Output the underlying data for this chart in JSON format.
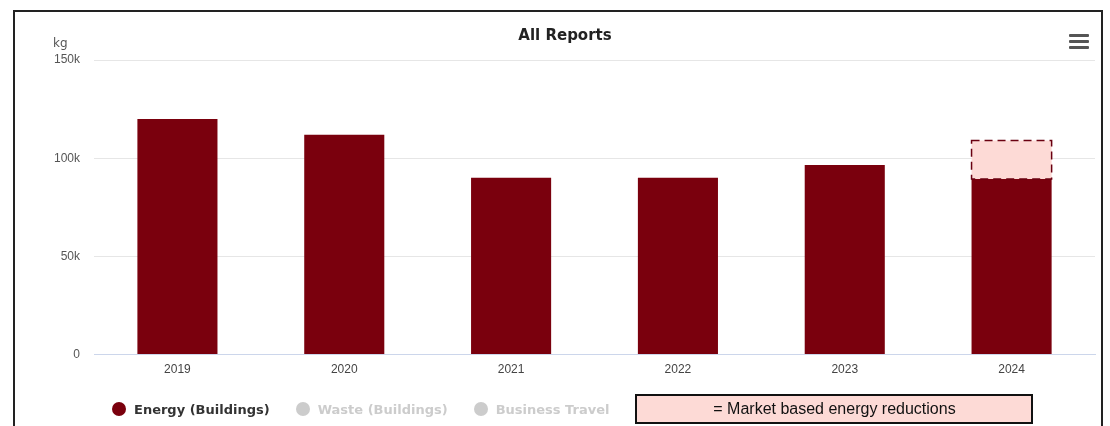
{
  "chart_data": {
    "type": "bar",
    "title": "All Reports",
    "ylabel": "kg",
    "categories": [
      "2019",
      "2020",
      "2021",
      "2022",
      "2023",
      "2024"
    ],
    "series": [
      {
        "name": "Energy (Buildings)",
        "color": "#7a000d",
        "values": [
          120000,
          112000,
          90000,
          90000,
          96500,
          89400
        ]
      },
      {
        "name": "Waste (Buildings)",
        "color": "#cccccc",
        "values": [
          null,
          null,
          null,
          null,
          null,
          null
        ]
      },
      {
        "name": "Business Travel",
        "color": "#cccccc",
        "values": [
          null,
          null,
          null,
          null,
          null,
          null
        ]
      },
      {
        "name": "= Market based energy reductions",
        "color": "#fddad6",
        "line_style": "dashed",
        "values": [
          null,
          null,
          null,
          null,
          null,
          19600
        ]
      }
    ],
    "stacked": true,
    "ylim": [
      0,
      150000
    ],
    "yticks": [
      0,
      {
        "value": 50000,
        "label": "50k"
      },
      {
        "value": 100000,
        "label": "100k"
      },
      {
        "value": 150000,
        "label": "150k"
      }
    ],
    "grid": "y",
    "legend": "bottom"
  }
}
